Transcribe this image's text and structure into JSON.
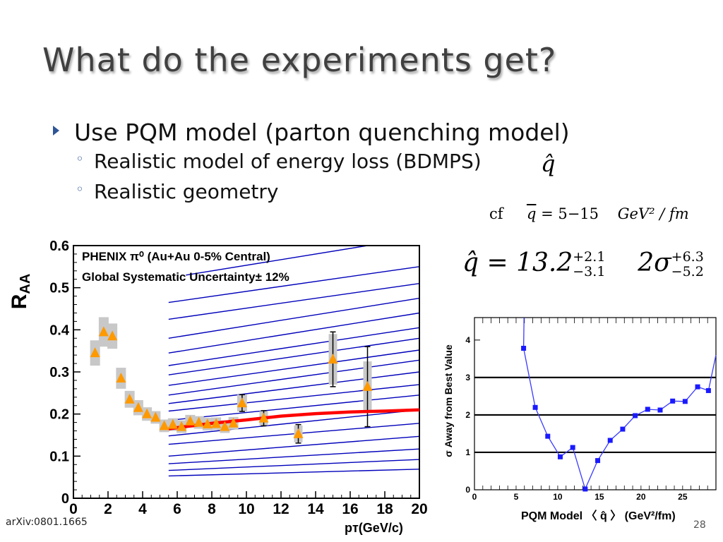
{
  "slide": {
    "title": "What do the experiments get?",
    "bullet_main": "Use PQM model  (parton quenching model)",
    "sub_bullets": [
      "Realistic model of energy loss (BDMPS)",
      "Realistic geometry"
    ],
    "qhat_symbol": "q̂",
    "cf_text": "cf",
    "cf_expr": "q = 5−15",
    "cf_units": "GeV² / fm",
    "result_lhs": "q̂ = 13.2",
    "result_up": "+2.1",
    "result_down": "−3.1",
    "result_two_sigma": "2σ",
    "result_two_sigma_up": "+6.3",
    "result_two_sigma_down": "−5.2",
    "footer_left": "arXiv:0801.1665",
    "page_number": "28"
  },
  "colors": {
    "title": "#404040",
    "bullet": "#2f5597",
    "data_marker": "#ff9900",
    "fit_curve": "#ff0000",
    "model_curves": "#0000bb",
    "sigma_marker": "#1a1aff"
  },
  "chart_data": [
    {
      "type": "scatter",
      "title": "PHENIX π⁰ (Au+Au 0-5% Central)",
      "subtitle": "Global Systematic Uncertainty± 12%",
      "xlabel": "pᴛ(GeV/c)",
      "ylabel": "R_AA",
      "xlim": [
        0,
        20
      ],
      "ylim": [
        0,
        0.6
      ],
      "xticks": [
        0,
        2,
        4,
        6,
        8,
        10,
        12,
        14,
        16,
        18,
        20
      ],
      "yticks": [
        0,
        0.1,
        0.2,
        0.3,
        0.4,
        0.5,
        0.6
      ],
      "points": [
        {
          "x": 1.25,
          "y": 0.345,
          "sys": 0.03,
          "err": 0
        },
        {
          "x": 1.75,
          "y": 0.395,
          "sys": 0.035,
          "err": 0
        },
        {
          "x": 2.25,
          "y": 0.385,
          "sys": 0.03,
          "err": 0
        },
        {
          "x": 2.75,
          "y": 0.285,
          "sys": 0.025,
          "err": 0
        },
        {
          "x": 3.25,
          "y": 0.235,
          "sys": 0.02,
          "err": 0
        },
        {
          "x": 3.75,
          "y": 0.215,
          "sys": 0.018,
          "err": 0
        },
        {
          "x": 4.25,
          "y": 0.2,
          "sys": 0.016,
          "err": 0
        },
        {
          "x": 4.75,
          "y": 0.192,
          "sys": 0.015,
          "err": 0
        },
        {
          "x": 5.25,
          "y": 0.172,
          "sys": 0.015,
          "err": 0
        },
        {
          "x": 5.75,
          "y": 0.175,
          "sys": 0.015,
          "err": 0
        },
        {
          "x": 6.25,
          "y": 0.17,
          "sys": 0.015,
          "err": 0
        },
        {
          "x": 6.75,
          "y": 0.183,
          "sys": 0.015,
          "err": 0
        },
        {
          "x": 7.25,
          "y": 0.18,
          "sys": 0.015,
          "err": 0
        },
        {
          "x": 7.75,
          "y": 0.176,
          "sys": 0.015,
          "err": 0
        },
        {
          "x": 8.25,
          "y": 0.177,
          "sys": 0.015,
          "err": 0
        },
        {
          "x": 8.75,
          "y": 0.17,
          "sys": 0.015,
          "err": 0
        },
        {
          "x": 9.25,
          "y": 0.178,
          "sys": 0.015,
          "err": 0
        },
        {
          "x": 9.75,
          "y": 0.226,
          "sys": 0.02,
          "err": 0.02
        },
        {
          "x": 11.0,
          "y": 0.19,
          "sys": 0.017,
          "err": 0.018
        },
        {
          "x": 13.0,
          "y": 0.153,
          "sys": 0.02,
          "err": 0.022
        },
        {
          "x": 15.0,
          "y": 0.33,
          "sys": 0.06,
          "err": 0.065
        },
        {
          "x": 17.0,
          "y": 0.265,
          "sys": 0.06,
          "err": 0.095
        }
      ],
      "fit_curve": [
        [
          5.5,
          0.165
        ],
        [
          8,
          0.178
        ],
        [
          10,
          0.186
        ],
        [
          12,
          0.195
        ],
        [
          14,
          0.201
        ],
        [
          16,
          0.205
        ],
        [
          18,
          0.207
        ],
        [
          20,
          0.21
        ]
      ],
      "model_curves": [
        [
          [
            5.5,
            0.053
          ],
          [
            20,
            0.069
          ]
        ],
        [
          [
            5.5,
            0.066
          ],
          [
            20,
            0.092
          ]
        ],
        [
          [
            5.5,
            0.082
          ],
          [
            20,
            0.117
          ]
        ],
        [
          [
            5.5,
            0.1
          ],
          [
            20,
            0.147
          ]
        ],
        [
          [
            5.5,
            0.128
          ],
          [
            20,
            0.178
          ]
        ],
        [
          [
            5.5,
            0.148
          ],
          [
            20,
            0.21
          ]
        ],
        [
          [
            5.5,
            0.185
          ],
          [
            20,
            0.245
          ]
        ],
        [
          [
            5.5,
            0.207
          ],
          [
            20,
            0.27
          ]
        ],
        [
          [
            5.5,
            0.225
          ],
          [
            20,
            0.3
          ]
        ],
        [
          [
            5.5,
            0.245
          ],
          [
            20,
            0.328
          ]
        ],
        [
          [
            5.5,
            0.268
          ],
          [
            20,
            0.352
          ]
        ],
        [
          [
            5.5,
            0.293
          ],
          [
            20,
            0.38
          ]
        ],
        [
          [
            5.5,
            0.315
          ],
          [
            20,
            0.405
          ]
        ],
        [
          [
            5.5,
            0.345
          ],
          [
            20,
            0.44
          ]
        ],
        [
          [
            5.5,
            0.38
          ],
          [
            20,
            0.475
          ]
        ],
        [
          [
            5.5,
            0.425
          ],
          [
            20,
            0.51
          ]
        ],
        [
          [
            5.5,
            0.465
          ],
          [
            20,
            0.55
          ]
        ],
        [
          [
            6.5,
            0.53
          ],
          [
            17,
            0.6
          ]
        ]
      ]
    },
    {
      "type": "scatter",
      "xlabel": "PQM Model 〈 q̂ 〉 (GeV²/fm)",
      "ylabel": "σ Away from Best Value",
      "xlim": [
        0,
        29
      ],
      "ylim": [
        0,
        4.6
      ],
      "xticks": [
        0,
        5,
        10,
        15,
        20,
        25
      ],
      "yticks": [
        0,
        1,
        2,
        3,
        4
      ],
      "hlines": [
        1,
        2,
        3
      ],
      "points": [
        [
          5.9,
          3.78
        ],
        [
          7.3,
          2.2
        ],
        [
          8.8,
          1.43
        ],
        [
          10.3,
          0.88
        ],
        [
          11.8,
          1.13
        ],
        [
          13.3,
          0.02
        ],
        [
          14.8,
          0.78
        ],
        [
          16.3,
          1.32
        ],
        [
          17.8,
          1.62
        ],
        [
          19.3,
          1.98
        ],
        [
          20.8,
          2.15
        ],
        [
          22.3,
          2.13
        ],
        [
          23.8,
          2.37
        ],
        [
          25.3,
          2.36
        ],
        [
          26.8,
          2.75
        ],
        [
          28.1,
          2.65
        ]
      ]
    }
  ]
}
